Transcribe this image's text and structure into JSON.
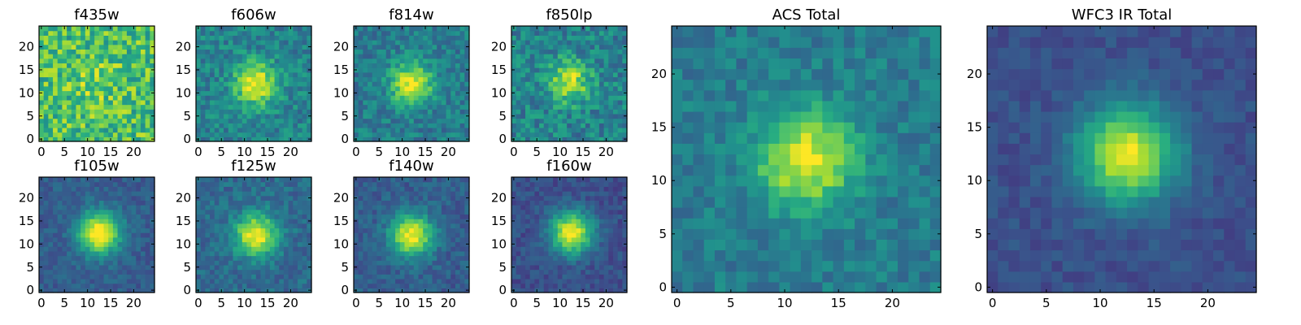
{
  "chart_data": [
    {
      "type": "heatmap",
      "title": "f435w",
      "xticks": [
        "0",
        "5",
        "10",
        "15",
        "20"
      ],
      "yticks": [
        "0",
        "5",
        "10",
        "15",
        "20"
      ],
      "xlim": [
        -0.5,
        24.5
      ],
      "ylim": [
        -0.5,
        24.5
      ],
      "grid_size": 25,
      "peak": [
        12,
        12
      ],
      "peak_amplitude": 0.12,
      "background": 0.7,
      "noise": 0.22,
      "colormap": "viridis"
    },
    {
      "type": "heatmap",
      "title": "f606w",
      "xticks": [
        "0",
        "5",
        "10",
        "15",
        "20"
      ],
      "yticks": [
        "0",
        "5",
        "10",
        "15",
        "20"
      ],
      "xlim": [
        -0.5,
        24.5
      ],
      "ylim": [
        -0.5,
        24.5
      ],
      "grid_size": 25,
      "peak": [
        12.5,
        12
      ],
      "peak_amplitude": 0.55,
      "background": 0.45,
      "noise": 0.14,
      "colormap": "viridis"
    },
    {
      "type": "heatmap",
      "title": "f814w",
      "xticks": [
        "0",
        "5",
        "10",
        "15",
        "20"
      ],
      "yticks": [
        "0",
        "5",
        "10",
        "15",
        "20"
      ],
      "xlim": [
        -0.5,
        24.5
      ],
      "ylim": [
        -0.5,
        24.5
      ],
      "grid_size": 25,
      "peak": [
        12,
        12
      ],
      "peak_amplitude": 0.55,
      "background": 0.42,
      "noise": 0.13,
      "colormap": "viridis"
    },
    {
      "type": "heatmap",
      "title": "f850lp",
      "xticks": [
        "0",
        "5",
        "10",
        "15",
        "20"
      ],
      "yticks": [
        "0",
        "5",
        "10",
        "15",
        "20"
      ],
      "xlim": [
        -0.5,
        24.5
      ],
      "ylim": [
        -0.5,
        24.5
      ],
      "grid_size": 25,
      "peak": [
        12,
        12.5
      ],
      "peak_amplitude": 0.45,
      "background": 0.45,
      "noise": 0.16,
      "colormap": "viridis"
    },
    {
      "type": "heatmap",
      "title": "f105w",
      "xticks": [
        "0",
        "5",
        "10",
        "15",
        "20"
      ],
      "yticks": [
        "0",
        "5",
        "10",
        "15",
        "20"
      ],
      "xlim": [
        -0.5,
        24.5
      ],
      "ylim": [
        -0.5,
        24.5
      ],
      "grid_size": 25,
      "peak": [
        12.5,
        12.5
      ],
      "peak_amplitude": 0.75,
      "background": 0.3,
      "noise": 0.08,
      "colormap": "viridis"
    },
    {
      "type": "heatmap",
      "title": "f125w",
      "xticks": [
        "0",
        "5",
        "10",
        "15",
        "20"
      ],
      "yticks": [
        "0",
        "5",
        "10",
        "15",
        "20"
      ],
      "xlim": [
        -0.5,
        24.5
      ],
      "ylim": [
        -0.5,
        24.5
      ],
      "grid_size": 25,
      "peak": [
        12.5,
        12
      ],
      "peak_amplitude": 0.65,
      "background": 0.35,
      "noise": 0.1,
      "colormap": "viridis"
    },
    {
      "type": "heatmap",
      "title": "f140w",
      "xticks": [
        "0",
        "5",
        "10",
        "15",
        "20"
      ],
      "yticks": [
        "0",
        "5",
        "10",
        "15",
        "20"
      ],
      "xlim": [
        -0.5,
        24.5
      ],
      "ylim": [
        -0.5,
        24.5
      ],
      "grid_size": 25,
      "peak": [
        12,
        12
      ],
      "peak_amplitude": 0.7,
      "background": 0.3,
      "noise": 0.09,
      "colormap": "viridis"
    },
    {
      "type": "heatmap",
      "title": "f160w",
      "xticks": [
        "0",
        "5",
        "10",
        "15",
        "20"
      ],
      "yticks": [
        "0",
        "5",
        "10",
        "15",
        "20"
      ],
      "xlim": [
        -0.5,
        24.5
      ],
      "ylim": [
        -0.5,
        24.5
      ],
      "grid_size": 25,
      "peak": [
        12.5,
        12.5
      ],
      "peak_amplitude": 0.75,
      "background": 0.25,
      "noise": 0.08,
      "colormap": "viridis"
    },
    {
      "type": "heatmap",
      "title": "ACS Total",
      "xticks": [
        "0",
        "5",
        "10",
        "15",
        "20"
      ],
      "yticks": [
        "0",
        "5",
        "10",
        "15",
        "20"
      ],
      "xlim": [
        -0.5,
        24.5
      ],
      "ylim": [
        -0.5,
        24.5
      ],
      "grid_size": 25,
      "peak": [
        12,
        12
      ],
      "peak_amplitude": 0.55,
      "background": 0.42,
      "noise": 0.1,
      "colormap": "viridis"
    },
    {
      "type": "heatmap",
      "title": "WFC3 IR Total",
      "xticks": [
        "0",
        "5",
        "10",
        "15",
        "20"
      ],
      "yticks": [
        "0",
        "5",
        "10",
        "15",
        "20"
      ],
      "xlim": [
        -0.5,
        24.5
      ],
      "ylim": [
        -0.5,
        24.5
      ],
      "grid_size": 25,
      "peak": [
        12.5,
        12.5
      ],
      "peak_amplitude": 0.72,
      "background": 0.25,
      "noise": 0.06,
      "colormap": "viridis"
    }
  ]
}
